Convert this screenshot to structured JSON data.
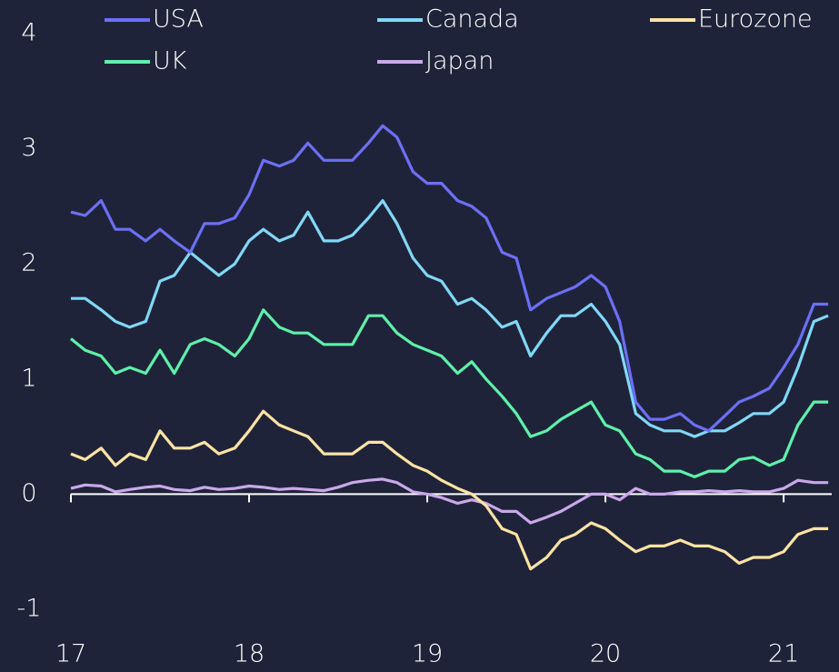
{
  "chart_data": {
    "type": "line",
    "x": [
      17,
      17.08,
      17.17,
      17.25,
      17.33,
      17.42,
      17.5,
      17.58,
      17.67,
      17.75,
      17.83,
      17.92,
      18,
      18.08,
      18.17,
      18.25,
      18.33,
      18.42,
      18.5,
      18.58,
      18.67,
      18.75,
      18.83,
      18.92,
      19,
      19.08,
      19.17,
      19.25,
      19.33,
      19.42,
      19.5,
      19.58,
      19.67,
      19.75,
      19.83,
      19.92,
      20,
      20.08,
      20.17,
      20.25,
      20.33,
      20.42,
      20.5,
      20.58,
      20.67,
      20.75,
      20.83,
      20.92,
      21,
      21.08,
      21.17,
      21.25
    ],
    "series": [
      {
        "name": "USA",
        "color": "#6c6ff6",
        "values": [
          2.45,
          2.42,
          2.55,
          2.3,
          2.3,
          2.2,
          2.3,
          2.2,
          2.1,
          2.35,
          2.35,
          2.4,
          2.6,
          2.9,
          2.85,
          2.9,
          3.05,
          2.9,
          2.9,
          2.9,
          3.05,
          3.2,
          3.1,
          2.8,
          2.7,
          2.7,
          2.55,
          2.5,
          2.4,
          2.1,
          2.05,
          1.6,
          1.7,
          1.75,
          1.8,
          1.9,
          1.8,
          1.5,
          0.8,
          0.65,
          0.65,
          0.7,
          0.6,
          0.55,
          0.68,
          0.8,
          0.85,
          0.92,
          1.1,
          1.3,
          1.65,
          1.65
        ]
      },
      {
        "name": "Canada",
        "color": "#80d8f6",
        "values": [
          1.7,
          1.7,
          1.6,
          1.5,
          1.45,
          1.5,
          1.85,
          1.9,
          2.1,
          2.0,
          1.9,
          2.0,
          2.2,
          2.3,
          2.2,
          2.25,
          2.45,
          2.2,
          2.2,
          2.25,
          2.4,
          2.55,
          2.35,
          2.05,
          1.9,
          1.85,
          1.65,
          1.7,
          1.6,
          1.45,
          1.5,
          1.2,
          1.4,
          1.55,
          1.55,
          1.65,
          1.5,
          1.3,
          0.7,
          0.6,
          0.55,
          0.55,
          0.5,
          0.55,
          0.55,
          0.62,
          0.7,
          0.7,
          0.8,
          1.1,
          1.5,
          1.55
        ]
      },
      {
        "name": "Eurozone",
        "color": "#fde3a3",
        "values": [
          0.35,
          0.3,
          0.4,
          0.25,
          0.35,
          0.3,
          0.55,
          0.4,
          0.4,
          0.45,
          0.35,
          0.4,
          0.55,
          0.72,
          0.6,
          0.55,
          0.5,
          0.35,
          0.35,
          0.35,
          0.45,
          0.45,
          0.35,
          0.25,
          0.2,
          0.12,
          0.05,
          0.0,
          -0.1,
          -0.3,
          -0.35,
          -0.65,
          -0.55,
          -0.4,
          -0.35,
          -0.25,
          -0.3,
          -0.4,
          -0.5,
          -0.45,
          -0.45,
          -0.4,
          -0.45,
          -0.45,
          -0.5,
          -0.6,
          -0.55,
          -0.55,
          -0.5,
          -0.35,
          -0.3,
          -0.3
        ]
      },
      {
        "name": "UK",
        "color": "#5ff0a9",
        "values": [
          1.35,
          1.25,
          1.2,
          1.05,
          1.1,
          1.05,
          1.25,
          1.05,
          1.3,
          1.35,
          1.3,
          1.2,
          1.35,
          1.6,
          1.45,
          1.4,
          1.4,
          1.3,
          1.3,
          1.3,
          1.55,
          1.55,
          1.4,
          1.3,
          1.25,
          1.2,
          1.05,
          1.15,
          1.0,
          0.85,
          0.7,
          0.5,
          0.55,
          0.65,
          0.72,
          0.8,
          0.6,
          0.55,
          0.35,
          0.3,
          0.2,
          0.2,
          0.15,
          0.2,
          0.2,
          0.3,
          0.32,
          0.25,
          0.3,
          0.6,
          0.8,
          0.8
        ]
      },
      {
        "name": "Japan",
        "color": "#caa8ea",
        "values": [
          0.05,
          0.08,
          0.07,
          0.02,
          0.04,
          0.06,
          0.07,
          0.04,
          0.03,
          0.06,
          0.04,
          0.05,
          0.07,
          0.06,
          0.04,
          0.05,
          0.04,
          0.03,
          0.06,
          0.1,
          0.12,
          0.13,
          0.1,
          0.02,
          0.0,
          -0.03,
          -0.08,
          -0.05,
          -0.08,
          -0.15,
          -0.15,
          -0.25,
          -0.2,
          -0.15,
          -0.08,
          0.0,
          0.0,
          -0.05,
          0.05,
          0.0,
          0.0,
          0.02,
          0.02,
          0.03,
          0.02,
          0.03,
          0.02,
          0.02,
          0.05,
          0.12,
          0.1,
          0.1
        ]
      }
    ],
    "xlim": [
      17,
      21.27
    ],
    "xticks": [
      17,
      18,
      19,
      20,
      21
    ],
    "ylim": [
      -1,
      4
    ],
    "yticks": [
      -1,
      0,
      1,
      2,
      3,
      4
    ],
    "grid": false,
    "legend": "top"
  }
}
